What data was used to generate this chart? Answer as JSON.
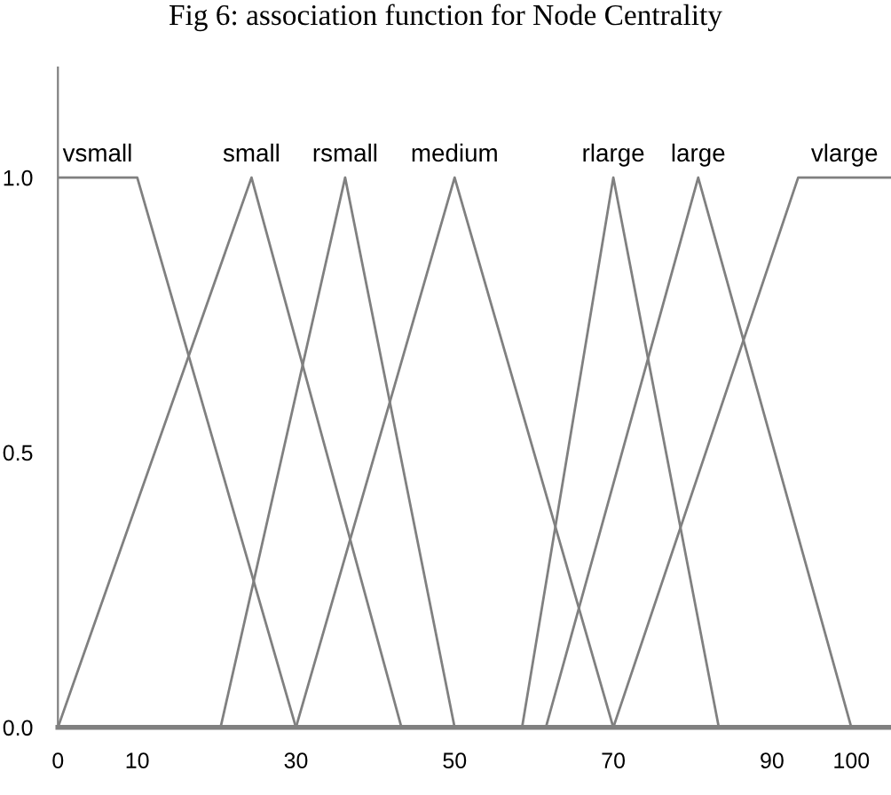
{
  "chart_data": {
    "type": "line",
    "title": "Fig 6: association function for Node Centrality",
    "xlim": [
      0,
      105
    ],
    "ylim": [
      0,
      1.2
    ],
    "xticks": [
      0,
      10,
      30,
      50,
      70,
      90,
      100
    ],
    "yticks": [
      {
        "value": 0,
        "label": "0.0"
      },
      {
        "value": 0.5,
        "label": "0.5"
      },
      {
        "value": 1,
        "label": "1.0"
      }
    ],
    "grid": false,
    "legend": false,
    "marker": "none",
    "line_style": "solid",
    "series": [
      {
        "name": "vsmall",
        "color": "#808080",
        "x": [
          0,
          10,
          30
        ],
        "values": [
          1,
          1,
          0
        ]
      },
      {
        "name": "small",
        "color": "#808080",
        "x": [
          0,
          24.4,
          43.3
        ],
        "values": [
          0,
          1,
          0
        ]
      },
      {
        "name": "rsmall",
        "color": "#808080",
        "x": [
          20.5,
          36.2,
          50
        ],
        "values": [
          0,
          1,
          0
        ]
      },
      {
        "name": "medium",
        "color": "#808080",
        "x": [
          30,
          50,
          70
        ],
        "values": [
          0,
          1,
          0
        ]
      },
      {
        "name": "rlarge",
        "color": "#808080",
        "x": [
          58.5,
          70,
          83.3
        ],
        "values": [
          0,
          1,
          0
        ]
      },
      {
        "name": "large",
        "color": "#808080",
        "x": [
          61.5,
          80.7,
          100
        ],
        "values": [
          0,
          1,
          0
        ]
      },
      {
        "name": "vlarge",
        "color": "#808080",
        "x": [
          70,
          93.3,
          105
        ],
        "values": [
          0,
          1,
          1
        ]
      }
    ]
  }
}
